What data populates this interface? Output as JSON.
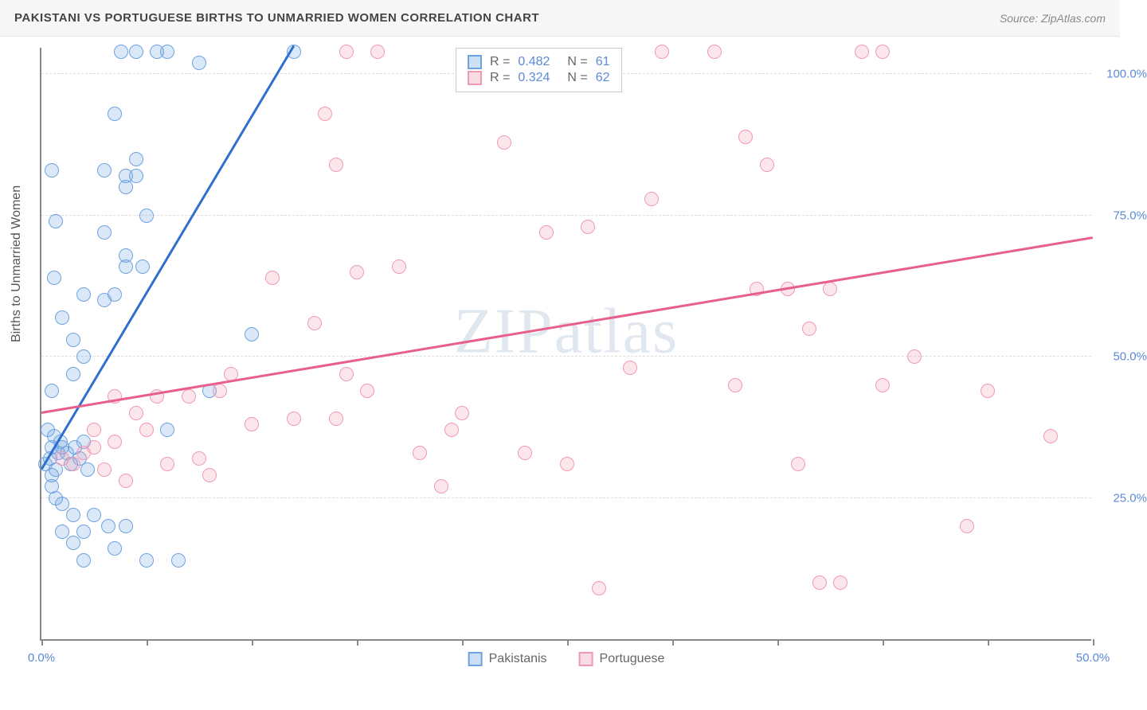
{
  "title": "PAKISTANI VS PORTUGUESE BIRTHS TO UNMARRIED WOMEN CORRELATION CHART",
  "source": "Source: ZipAtlas.com",
  "ylabel": "Births to Unmarried Women",
  "watermark": "ZIPatlas",
  "chart": {
    "type": "scatter",
    "background_color": "#ffffff",
    "grid_color": "#dddddd",
    "axis_color": "#888888",
    "xlim": [
      0,
      50
    ],
    "ylim": [
      0,
      105
    ],
    "xticks": [
      0,
      5,
      10,
      15,
      20,
      25,
      30,
      35,
      40,
      45,
      50
    ],
    "xtick_labels": {
      "0": "0.0%",
      "50": "50.0%"
    },
    "yticks": [
      25,
      50,
      75,
      100
    ],
    "ytick_labels": [
      "25.0%",
      "50.0%",
      "75.0%",
      "100.0%"
    ],
    "marker_radius": 9,
    "marker_fill_opacity": 0.25,
    "marker_stroke_width": 1.5,
    "series": [
      {
        "name": "Pakistanis",
        "color": "#6fa3e0",
        "line_color": "#2e6fd0",
        "r": "0.482",
        "n": "61",
        "trend": {
          "x1": 0,
          "y1": 30,
          "x2": 12,
          "y2": 105
        },
        "points": [
          [
            0.2,
            31
          ],
          [
            0.4,
            32
          ],
          [
            0.5,
            29
          ],
          [
            0.5,
            34
          ],
          [
            0.6,
            36
          ],
          [
            0.7,
            30
          ],
          [
            0.8,
            33
          ],
          [
            0.9,
            35
          ],
          [
            0.3,
            37
          ],
          [
            1.0,
            34
          ],
          [
            1.2,
            33
          ],
          [
            1.4,
            31
          ],
          [
            1.6,
            34
          ],
          [
            1.8,
            32
          ],
          [
            2.0,
            35
          ],
          [
            2.2,
            30
          ],
          [
            0.5,
            27
          ],
          [
            0.7,
            25
          ],
          [
            1.0,
            24
          ],
          [
            1.5,
            22
          ],
          [
            1.0,
            19
          ],
          [
            2.0,
            19
          ],
          [
            2.5,
            22
          ],
          [
            3.2,
            20
          ],
          [
            4.0,
            20
          ],
          [
            5.0,
            14
          ],
          [
            2.0,
            14
          ],
          [
            3.5,
            16
          ],
          [
            1.5,
            17
          ],
          [
            6.5,
            14
          ],
          [
            0.5,
            44
          ],
          [
            1.5,
            47
          ],
          [
            2.0,
            50
          ],
          [
            1.5,
            53
          ],
          [
            1.0,
            57
          ],
          [
            2.0,
            61
          ],
          [
            3.0,
            60
          ],
          [
            3.5,
            61
          ],
          [
            0.6,
            64
          ],
          [
            4.0,
            66
          ],
          [
            4.8,
            66
          ],
          [
            4.0,
            68
          ],
          [
            3.0,
            72
          ],
          [
            0.7,
            74
          ],
          [
            5.0,
            75
          ],
          [
            4.0,
            80
          ],
          [
            4.0,
            82
          ],
          [
            0.5,
            83
          ],
          [
            3.0,
            83
          ],
          [
            4.5,
            85
          ],
          [
            4.5,
            82
          ],
          [
            3.5,
            93
          ],
          [
            3.8,
            104
          ],
          [
            4.5,
            104
          ],
          [
            5.5,
            104
          ],
          [
            6.0,
            104
          ],
          [
            7.5,
            102
          ],
          [
            12.0,
            104
          ],
          [
            10.0,
            54
          ],
          [
            8.0,
            44
          ],
          [
            6.0,
            37
          ]
        ]
      },
      {
        "name": "Portuguese",
        "color": "#f09ab2",
        "line_color": "#e85f8b",
        "r": "0.324",
        "n": "62",
        "trend": {
          "x1": 0,
          "y1": 40,
          "x2": 50,
          "y2": 71
        },
        "points": [
          [
            1.0,
            32
          ],
          [
            2.0,
            33
          ],
          [
            1.5,
            31
          ],
          [
            2.5,
            34
          ],
          [
            3.0,
            30
          ],
          [
            3.5,
            35
          ],
          [
            4.0,
            28
          ],
          [
            2.5,
            37
          ],
          [
            4.5,
            40
          ],
          [
            3.5,
            43
          ],
          [
            5.5,
            43
          ],
          [
            7.0,
            43
          ],
          [
            8.5,
            44
          ],
          [
            6.0,
            31
          ],
          [
            7.5,
            32
          ],
          [
            8.0,
            29
          ],
          [
            5.0,
            37
          ],
          [
            10.0,
            38
          ],
          [
            9.0,
            47
          ],
          [
            11.0,
            64
          ],
          [
            13.0,
            56
          ],
          [
            14.0,
            39
          ],
          [
            14.5,
            47
          ],
          [
            15.5,
            44
          ],
          [
            15.0,
            65
          ],
          [
            14.0,
            84
          ],
          [
            13.5,
            93
          ],
          [
            14.5,
            104
          ],
          [
            16.0,
            104
          ],
          [
            12.0,
            39
          ],
          [
            17.0,
            66
          ],
          [
            18.0,
            33
          ],
          [
            19.0,
            27
          ],
          [
            19.5,
            37
          ],
          [
            20.0,
            40
          ],
          [
            22.0,
            88
          ],
          [
            23.0,
            33
          ],
          [
            24.0,
            72
          ],
          [
            25.0,
            31
          ],
          [
            26.0,
            73
          ],
          [
            26.5,
            9
          ],
          [
            28.0,
            48
          ],
          [
            29.0,
            78
          ],
          [
            29.5,
            104
          ],
          [
            32.0,
            104
          ],
          [
            33.0,
            45
          ],
          [
            33.5,
            89
          ],
          [
            34.0,
            62
          ],
          [
            34.5,
            84
          ],
          [
            35.5,
            62
          ],
          [
            36.0,
            31
          ],
          [
            36.5,
            55
          ],
          [
            37.0,
            10
          ],
          [
            37.5,
            62
          ],
          [
            38.0,
            10
          ],
          [
            39.0,
            104
          ],
          [
            40.0,
            104
          ],
          [
            40.0,
            45
          ],
          [
            41.5,
            50
          ],
          [
            44.0,
            20
          ],
          [
            45.0,
            44
          ],
          [
            48.0,
            36
          ]
        ]
      }
    ]
  },
  "legend": {
    "items": [
      {
        "label": "Pakistanis",
        "color": "#6fa3e0"
      },
      {
        "label": "Portuguese",
        "color": "#f09ab2"
      }
    ]
  }
}
